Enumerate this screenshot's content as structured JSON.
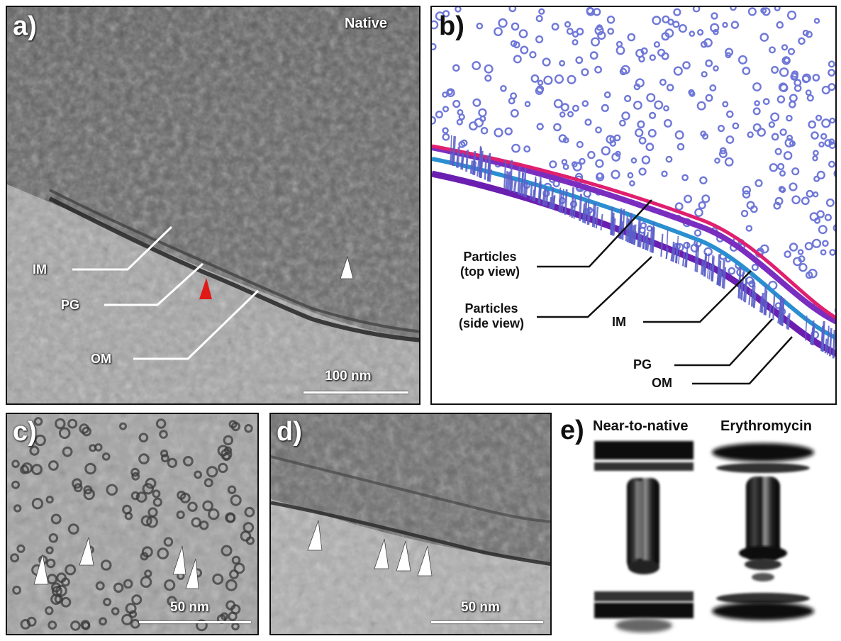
{
  "panels": {
    "a": {
      "label": "a)",
      "condition": "Native",
      "labels": {
        "im": "IM",
        "pg": "PG",
        "om": "OM"
      },
      "scale": "100 nm"
    },
    "b": {
      "label": "b)",
      "labels": {
        "particles_top_1": "Particles",
        "particles_top_2": "(top view)",
        "particles_side_1": "Particles",
        "particles_side_2": "(side view)",
        "im": "IM",
        "pg": "PG",
        "om": "OM"
      },
      "colors": {
        "particles": "#6f78d8",
        "im": "#e0206f",
        "pg": "#2a8fd0",
        "om": "#7a2ec0"
      }
    },
    "c": {
      "label": "c)",
      "scale": "50 nm"
    },
    "d": {
      "label": "d)",
      "scale": "50 nm"
    },
    "e": {
      "label": "e)",
      "left_title": "Near-to-native",
      "right_title": "Erythromycin"
    }
  },
  "colors": {
    "arrow_red": "#e01818",
    "arrow_white": "#ffffff"
  }
}
